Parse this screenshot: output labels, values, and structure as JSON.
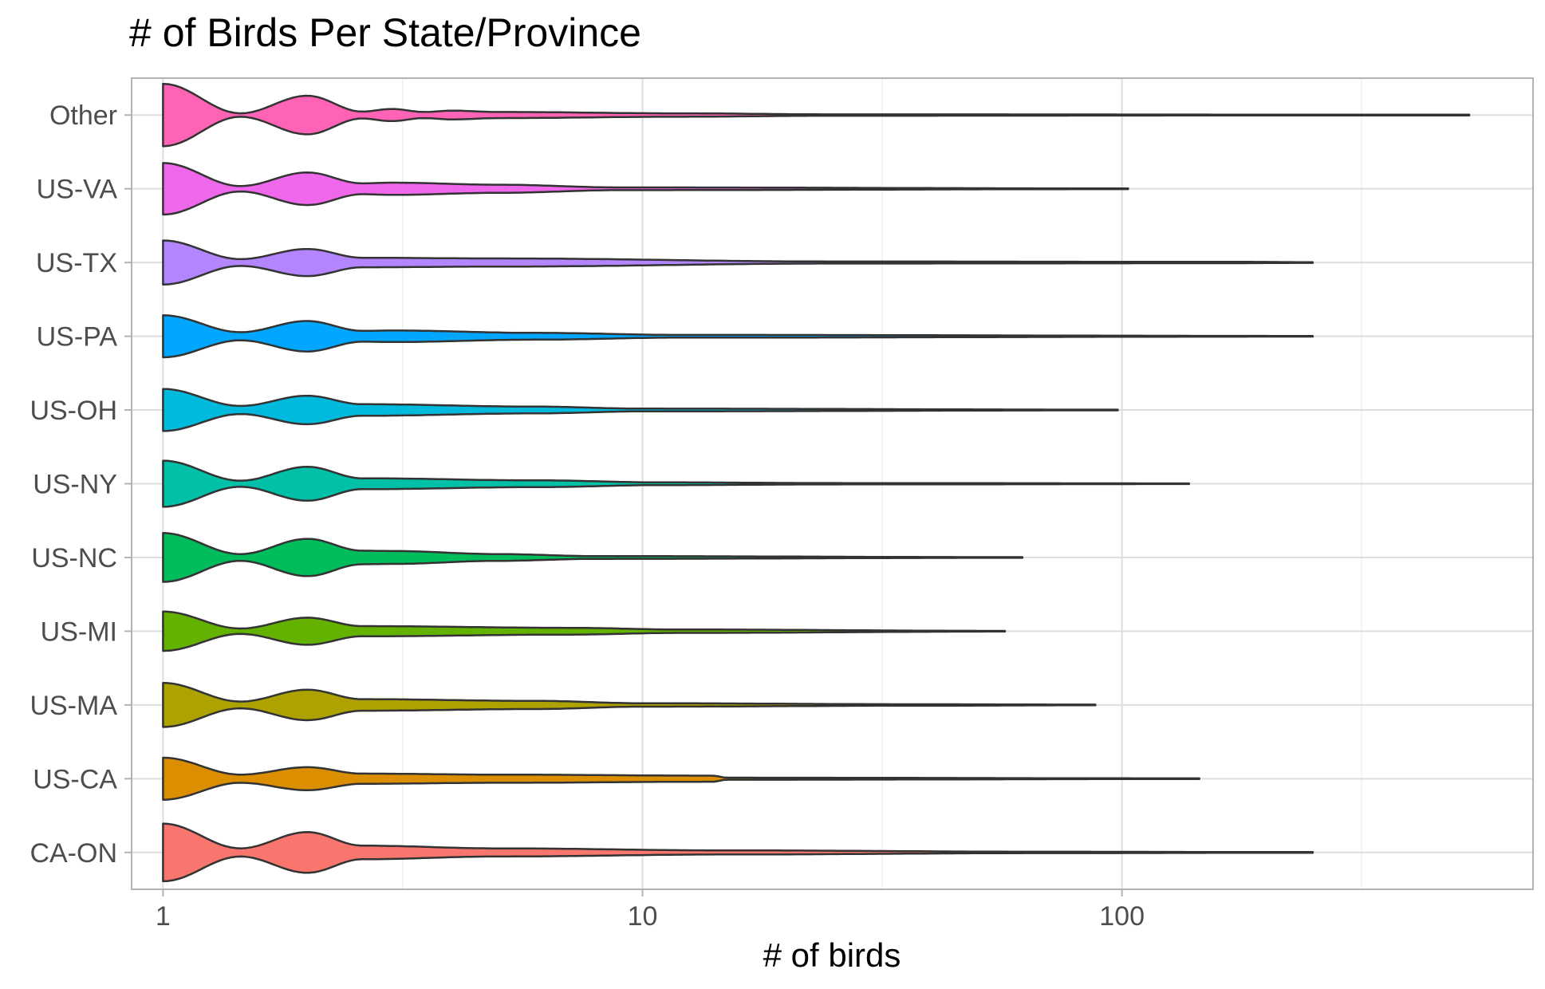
{
  "chart_data": {
    "type": "violin",
    "title": "# of Birds Per State/Province",
    "xlabel": "# of birds",
    "ylabel": "",
    "x_scale": "log10",
    "xlim": [
      0.86,
      720
    ],
    "x_ticks": [
      1,
      10,
      100
    ],
    "x_tick_labels": [
      "1",
      "10",
      "100"
    ],
    "x_minor_gridlines": [
      3.16,
      31.6,
      316
    ],
    "grid": true,
    "legend": "none",
    "categories": [
      "CA-ON",
      "US-CA",
      "US-MA",
      "US-MI",
      "US-NC",
      "US-NY",
      "US-OH",
      "US-PA",
      "US-TX",
      "US-VA",
      "Other"
    ],
    "series": [
      {
        "name": "CA-ON",
        "color": "#F8766D",
        "min": 1,
        "max": 250,
        "density_profile": [
          [
            1,
            0.85
          ],
          [
            1.45,
            0.12
          ],
          [
            2,
            0.6
          ],
          [
            2.6,
            0.2
          ],
          [
            5,
            0.12
          ],
          [
            15,
            0.06
          ],
          [
            70,
            0.02
          ],
          [
            250,
            0.01
          ]
        ]
      },
      {
        "name": "US-CA",
        "color": "#DB8E00",
        "min": 1,
        "max": 145,
        "density_profile": [
          [
            1,
            0.62
          ],
          [
            1.45,
            0.12
          ],
          [
            2,
            0.34
          ],
          [
            2.6,
            0.15
          ],
          [
            5,
            0.12
          ],
          [
            14,
            0.09
          ],
          [
            15,
            0.03
          ],
          [
            145,
            0.01
          ]
        ]
      },
      {
        "name": "US-MA",
        "color": "#AEA200",
        "min": 1,
        "max": 88,
        "density_profile": [
          [
            1,
            0.65
          ],
          [
            1.45,
            0.1
          ],
          [
            2,
            0.45
          ],
          [
            2.6,
            0.17
          ],
          [
            6,
            0.12
          ],
          [
            10,
            0.05
          ],
          [
            40,
            0.02
          ],
          [
            88,
            0.01
          ]
        ]
      },
      {
        "name": "US-MI",
        "color": "#64B200",
        "min": 1,
        "max": 57,
        "density_profile": [
          [
            1,
            0.58
          ],
          [
            1.45,
            0.08
          ],
          [
            2,
            0.4
          ],
          [
            2.6,
            0.15
          ],
          [
            7,
            0.1
          ],
          [
            12,
            0.05
          ],
          [
            57,
            0.01
          ]
        ]
      },
      {
        "name": "US-NC",
        "color": "#00BD5C",
        "min": 1,
        "max": 62,
        "density_profile": [
          [
            1,
            0.72
          ],
          [
            1.45,
            0.1
          ],
          [
            2,
            0.55
          ],
          [
            2.6,
            0.2
          ],
          [
            3,
            0.19
          ],
          [
            5,
            0.1
          ],
          [
            8,
            0.04
          ],
          [
            62,
            0.01
          ]
        ]
      },
      {
        "name": "US-NY",
        "color": "#00C1A7",
        "min": 1,
        "max": 138,
        "density_profile": [
          [
            1,
            0.68
          ],
          [
            1.45,
            0.09
          ],
          [
            2,
            0.5
          ],
          [
            2.6,
            0.16
          ],
          [
            6,
            0.1
          ],
          [
            11,
            0.04
          ],
          [
            25,
            0.02
          ],
          [
            138,
            0.01
          ]
        ]
      },
      {
        "name": "US-OH",
        "color": "#00BADE",
        "min": 1,
        "max": 98,
        "density_profile": [
          [
            1,
            0.62
          ],
          [
            1.45,
            0.12
          ],
          [
            2,
            0.42
          ],
          [
            2.6,
            0.17
          ],
          [
            6,
            0.1
          ],
          [
            10,
            0.04
          ],
          [
            98,
            0.01
          ]
        ]
      },
      {
        "name": "US-PA",
        "color": "#00A6FF",
        "min": 1,
        "max": 250,
        "density_profile": [
          [
            1,
            0.62
          ],
          [
            1.45,
            0.12
          ],
          [
            2,
            0.45
          ],
          [
            2.6,
            0.16
          ],
          [
            3,
            0.17
          ],
          [
            6,
            0.1
          ],
          [
            12,
            0.04
          ],
          [
            250,
            0.01
          ]
        ]
      },
      {
        "name": "US-TX",
        "color": "#B385FF",
        "min": 1,
        "max": 250,
        "density_profile": [
          [
            1,
            0.65
          ],
          [
            1.45,
            0.1
          ],
          [
            2,
            0.4
          ],
          [
            2.6,
            0.14
          ],
          [
            5,
            0.12
          ],
          [
            25,
            0.03
          ],
          [
            170,
            0.02
          ],
          [
            250,
            0.01
          ]
        ]
      },
      {
        "name": "US-VA",
        "color": "#EF67EB",
        "min": 1,
        "max": 103,
        "density_profile": [
          [
            1,
            0.76
          ],
          [
            1.45,
            0.08
          ],
          [
            2,
            0.48
          ],
          [
            2.6,
            0.16
          ],
          [
            3,
            0.18
          ],
          [
            5,
            0.12
          ],
          [
            9,
            0.04
          ],
          [
            103,
            0.01
          ]
        ]
      },
      {
        "name": "Other",
        "color": "#FF63B6",
        "min": 1,
        "max": 530,
        "density_profile": [
          [
            1,
            0.92
          ],
          [
            1.45,
            0.05
          ],
          [
            2,
            0.57
          ],
          [
            2.6,
            0.1
          ],
          [
            3,
            0.18
          ],
          [
            3.5,
            0.09
          ],
          [
            4,
            0.13
          ],
          [
            5,
            0.09
          ],
          [
            12,
            0.05
          ],
          [
            25,
            0.02
          ],
          [
            530,
            0.01
          ]
        ]
      }
    ]
  }
}
